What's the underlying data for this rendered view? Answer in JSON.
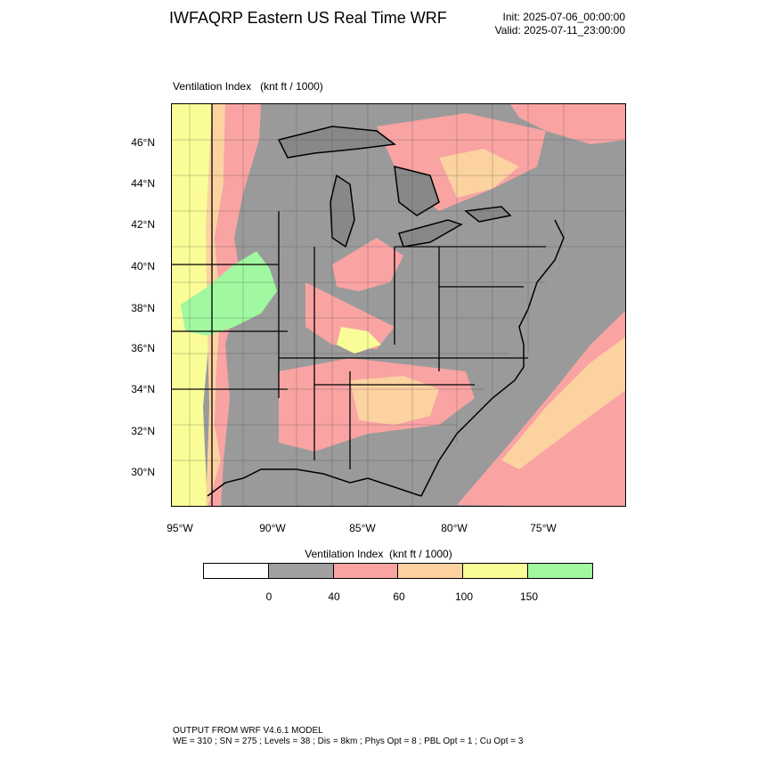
{
  "header": {
    "title": "IWFAQRP Eastern US Real Time WRF",
    "init": "Init: 2025-07-06_00:00:00",
    "valid": "Valid: 2025-07-11_23:00:00"
  },
  "field": {
    "name": "Ventilation Index",
    "units": "(knt ft / 1000)"
  },
  "map": {
    "lat_labels": [
      "46°N",
      "44°N",
      "42°N",
      "40°N",
      "38°N",
      "36°N",
      "34°N",
      "32°N",
      "30°N"
    ],
    "lon_labels": [
      "95°W",
      "90°W",
      "85°W",
      "80°W",
      "75°W"
    ]
  },
  "legend": {
    "title": "Ventilation Index  (knt ft / 1000)",
    "boxes": [
      {
        "color": "#ffffff"
      },
      {
        "color": "#a0a0a0"
      },
      {
        "color": "#f9a3a3"
      },
      {
        "color": "#fbd2a0"
      },
      {
        "color": "#fafc98"
      },
      {
        "color": "#a0f8a0"
      }
    ],
    "ticks": [
      "0",
      "40",
      "60",
      "100",
      "150"
    ]
  },
  "colors": {
    "land_low": "#a0a0a0",
    "mid": "#f9a3a3",
    "orange": "#fbd2a0",
    "yellow": "#fafc98",
    "green": "#a0f8a0"
  },
  "footer": {
    "line1": "OUTPUT FROM WRF V4.6.1 MODEL",
    "line2": "WE = 310 ; SN = 275 ; Levels = 38 ; Dis = 8km ; Phys Opt = 8 ; PBL Opt = 1 ; Cu Opt = 3"
  }
}
